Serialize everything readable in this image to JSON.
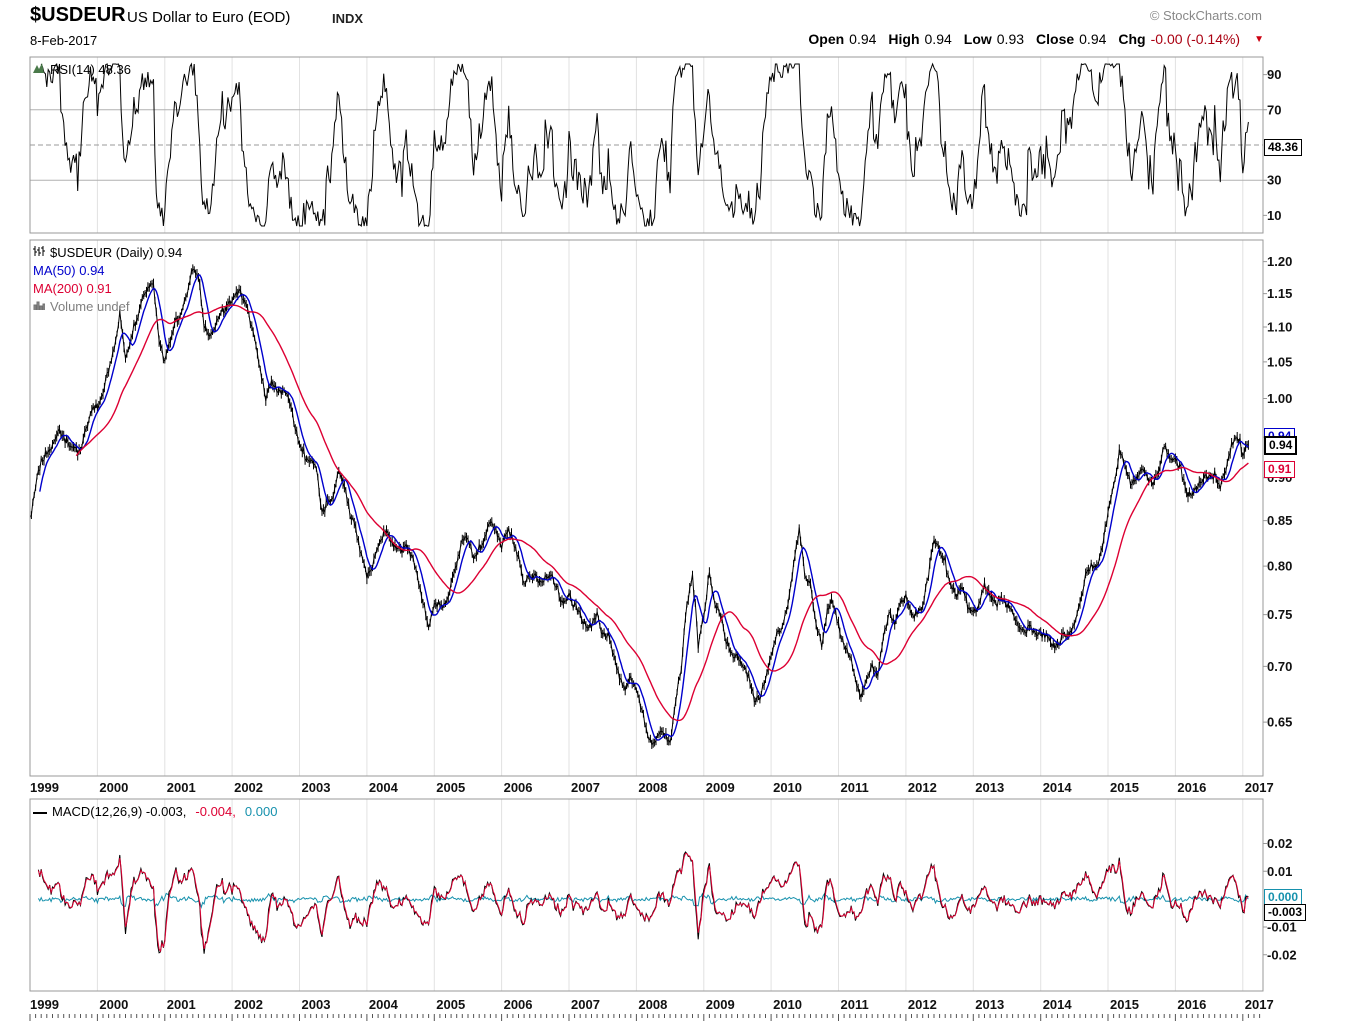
{
  "header": {
    "symbol": "$USDEUR",
    "title": "US Dollar to Euro (EOD)",
    "exchange": "INDX",
    "credit": "© StockCharts.com",
    "date": "8-Feb-2017",
    "quote": {
      "open_label": "Open",
      "open": "0.94",
      "high_label": "High",
      "high": "0.94",
      "low_label": "Low",
      "low": "0.93",
      "close_label": "Close",
      "close": "0.94",
      "chg_label": "Chg",
      "chg": "-0.00 (-0.14%)"
    }
  },
  "rsi_panel": {
    "legend": "RSI(14) 48.36",
    "value_box": "48.36",
    "ticks": [
      "90",
      "70",
      "30",
      "10"
    ]
  },
  "main_panel": {
    "legend_price": "$USDEUR (Daily) 0.94",
    "legend_ma50": "MA(50) 0.94",
    "legend_ma200": "MA(200) 0.91",
    "legend_volume": "Volume undef",
    "close_box": "0.94",
    "ma50_box": "0.94",
    "ma200_box": "0.91",
    "ticks": [
      "1.20",
      "1.15",
      "1.10",
      "1.05",
      "1.00",
      "0.95",
      "0.90",
      "0.85",
      "0.80",
      "0.75",
      "0.70",
      "0.65"
    ]
  },
  "macd_panel": {
    "legend_macd": "MACD(12,26,9) -0.003,",
    "legend_signal": "-0.004,",
    "legend_hist": "0.000",
    "macd_box": "-0.003",
    "hist_box": "0.000",
    "ticks": [
      "0.02",
      "0.01",
      "-0.01",
      "-0.02"
    ]
  },
  "x_axis": {
    "years": [
      "1999",
      "2000",
      "2001",
      "2002",
      "2003",
      "2004",
      "2005",
      "2006",
      "2007",
      "2008",
      "2009",
      "2010",
      "2011",
      "2012",
      "2013",
      "2014",
      "2015",
      "2016",
      "2017"
    ]
  },
  "colors": {
    "price": "#000000",
    "ma50": "#0000cc",
    "ma200": "#dd0033",
    "signal": "#dd0033",
    "hist": "#1691ad",
    "grid": "#e2e2e2",
    "frame": "#999999",
    "chg": "#aa0011"
  },
  "chart_data": {
    "type": "line",
    "title": "$USDEUR US Dollar to Euro (EOD) INDX",
    "x_unit": "month",
    "x_start": "1999-01",
    "x_end": "2017-02",
    "x_ticks": [
      "1999",
      "2000",
      "2001",
      "2002",
      "2003",
      "2004",
      "2005",
      "2006",
      "2007",
      "2008",
      "2009",
      "2010",
      "2011",
      "2012",
      "2013",
      "2014",
      "2015",
      "2016",
      "2017"
    ],
    "y_scale": "log",
    "ylim_price": [
      0.605,
      1.235
    ],
    "grid": "vertical-yearly",
    "legend_position": "top-left",
    "series": [
      {
        "name": "$USDEUR Daily Close",
        "color_key": "price",
        "last": 0.94
      },
      {
        "name": "MA(50)",
        "color_key": "ma50",
        "last": 0.94
      },
      {
        "name": "MA(200)",
        "color_key": "ma200",
        "last": 0.91
      }
    ],
    "price_monthly": [
      0.85,
      0.89,
      0.92,
      0.93,
      0.94,
      0.96,
      0.95,
      0.94,
      0.94,
      0.93,
      0.96,
      0.99,
      0.99,
      1.01,
      1.04,
      1.07,
      1.12,
      1.06,
      1.08,
      1.11,
      1.14,
      1.16,
      1.17,
      1.08,
      1.05,
      1.08,
      1.11,
      1.12,
      1.15,
      1.19,
      1.17,
      1.1,
      1.09,
      1.1,
      1.12,
      1.13,
      1.14,
      1.16,
      1.14,
      1.12,
      1.08,
      1.04,
      1.0,
      1.02,
      1.01,
      1.01,
      1.0,
      0.97,
      0.94,
      0.93,
      0.92,
      0.91,
      0.86,
      0.87,
      0.88,
      0.91,
      0.89,
      0.86,
      0.84,
      0.81,
      0.79,
      0.8,
      0.82,
      0.84,
      0.83,
      0.82,
      0.82,
      0.82,
      0.81,
      0.79,
      0.76,
      0.74,
      0.76,
      0.76,
      0.76,
      0.78,
      0.8,
      0.83,
      0.83,
      0.81,
      0.82,
      0.83,
      0.85,
      0.84,
      0.82,
      0.84,
      0.83,
      0.81,
      0.78,
      0.79,
      0.79,
      0.78,
      0.79,
      0.79,
      0.77,
      0.76,
      0.77,
      0.76,
      0.75,
      0.74,
      0.74,
      0.75,
      0.73,
      0.73,
      0.71,
      0.69,
      0.68,
      0.69,
      0.68,
      0.66,
      0.64,
      0.63,
      0.64,
      0.64,
      0.63,
      0.67,
      0.7,
      0.76,
      0.79,
      0.72,
      0.75,
      0.79,
      0.76,
      0.75,
      0.72,
      0.71,
      0.71,
      0.7,
      0.69,
      0.67,
      0.67,
      0.69,
      0.71,
      0.73,
      0.74,
      0.76,
      0.8,
      0.84,
      0.79,
      0.78,
      0.74,
      0.72,
      0.75,
      0.76,
      0.74,
      0.72,
      0.71,
      0.69,
      0.67,
      0.69,
      0.7,
      0.69,
      0.73,
      0.75,
      0.74,
      0.76,
      0.77,
      0.75,
      0.75,
      0.76,
      0.79,
      0.83,
      0.82,
      0.8,
      0.78,
      0.77,
      0.78,
      0.76,
      0.75,
      0.76,
      0.78,
      0.77,
      0.76,
      0.77,
      0.76,
      0.75,
      0.74,
      0.73,
      0.74,
      0.73,
      0.73,
      0.73,
      0.72,
      0.72,
      0.73,
      0.73,
      0.74,
      0.76,
      0.79,
      0.8,
      0.8,
      0.82,
      0.86,
      0.89,
      0.93,
      0.92,
      0.89,
      0.9,
      0.91,
      0.9,
      0.89,
      0.91,
      0.94,
      0.92,
      0.92,
      0.91,
      0.88,
      0.88,
      0.89,
      0.9,
      0.9,
      0.9,
      0.89,
      0.91,
      0.94,
      0.95,
      0.93,
      0.94
    ],
    "indicators": {
      "rsi": {
        "period": 14,
        "last": 48.36,
        "overbought": 70,
        "oversold": 30,
        "midline": 50,
        "range": [
          0,
          100
        ]
      },
      "macd": {
        "fast": 12,
        "slow": 26,
        "signal_period": 9,
        "last_macd": -0.003,
        "last_signal": -0.004,
        "last_hist": 0.0,
        "ylim": [
          -0.033,
          0.036
        ]
      }
    },
    "last_quote": {
      "open": 0.94,
      "high": 0.94,
      "low": 0.93,
      "close": 0.94,
      "change": "-0.00",
      "change_pct": "-0.14%",
      "date": "8-Feb-2017"
    },
    "volume": "undef"
  }
}
